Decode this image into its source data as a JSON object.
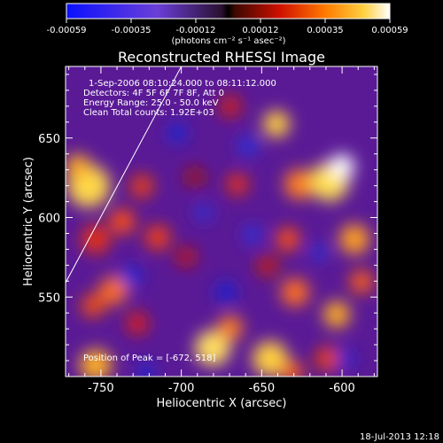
{
  "colorbar": {
    "tick_labels": [
      "-0.00059",
      "-0.00035",
      "-0.00012",
      "0.00012",
      "0.00035",
      "0.00059"
    ],
    "units": "(photons cm⁻² s⁻¹ asec⁻²)",
    "range": [
      -0.00059,
      0.00059
    ]
  },
  "chart_data": {
    "type": "heatmap",
    "title": "Reconstructed RHESSI Image",
    "xlabel": "Heliocentric X (arcsec)",
    "ylabel": "Heliocentric Y (arcsec)",
    "xlim": [
      -772,
      -578
    ],
    "ylim": [
      500,
      695
    ],
    "x_ticks": [
      -750,
      -700,
      -650,
      -600
    ],
    "x_tick_labels": [
      "-750",
      "-700",
      "-650",
      "-600"
    ],
    "y_ticks": [
      550,
      600,
      650
    ],
    "y_tick_labels": [
      "550",
      "600",
      "650"
    ],
    "grid": false,
    "limb_line": {
      "x": [
        -772,
        -700
      ],
      "y": [
        559,
        695
      ]
    },
    "annotations": {
      "time_range": "1-Sep-2006 08:10:24.000 to 08:11:12.000",
      "detectors": "Detectors: 4F 5F 6F 7F 8F, Att 0",
      "energy": "Energy Range: 25.0 - 50.0 keV",
      "clean": "Clean     Total counts: 1.92E+03",
      "peak": "Position of Peak = [-672, 518]"
    }
  },
  "footer": {
    "timestamp": "18-Jul-2013 12:18"
  }
}
